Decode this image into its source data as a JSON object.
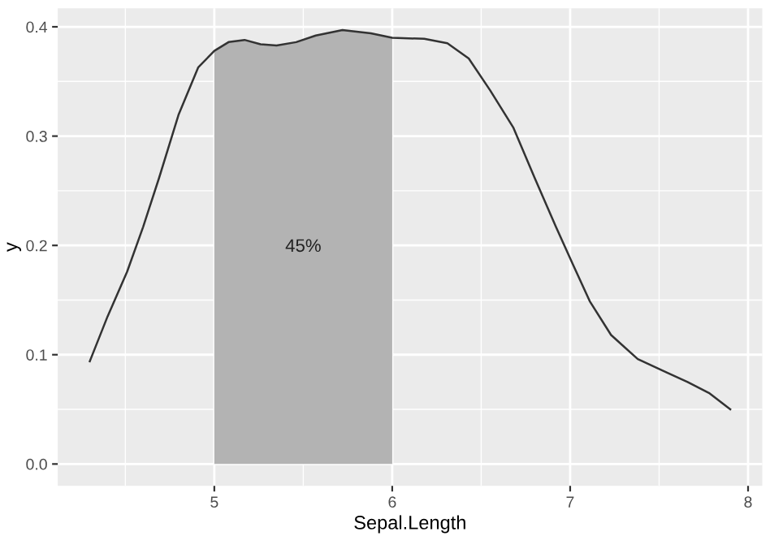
{
  "chart_data": {
    "type": "line",
    "xlabel": "Sepal.Length",
    "ylabel": "y",
    "xlim": [
      4.12,
      8.08
    ],
    "ylim": [
      -0.02,
      0.417
    ],
    "xticks": [
      5,
      6,
      7,
      8
    ],
    "yticks": [
      {
        "value": 0,
        "label": "0.0"
      },
      {
        "value": 0.1,
        "label": "0.1"
      },
      {
        "value": 0.2,
        "label": "0.2"
      },
      {
        "value": 0.3,
        "label": "0.3"
      },
      {
        "value": 0.4,
        "label": "0.4"
      }
    ],
    "grid": true,
    "series": [
      {
        "type": "area",
        "color": "#b3b3b3",
        "x": [
          5.0,
          5.08,
          5.17,
          5.26,
          5.35,
          5.46,
          5.57,
          5.72,
          5.88,
          6.0
        ],
        "values": [
          0.378,
          0.386,
          0.388,
          0.384,
          0.383,
          0.386,
          0.392,
          0.397,
          0.394,
          0.39
        ]
      },
      {
        "color": "#333333",
        "x": [
          4.3,
          4.4,
          4.51,
          4.6,
          4.69,
          4.8,
          4.91,
          5.0,
          5.08,
          5.17,
          5.26,
          5.35,
          5.46,
          5.57,
          5.72,
          5.88,
          6.0,
          6.18,
          6.31,
          6.43,
          6.55,
          6.68,
          6.8,
          6.92,
          7.02,
          7.11,
          7.23,
          7.38,
          7.54,
          7.66,
          7.78,
          7.9
        ],
        "values": [
          0.094,
          0.135,
          0.176,
          0.217,
          0.262,
          0.32,
          0.363,
          0.378,
          0.386,
          0.388,
          0.384,
          0.383,
          0.386,
          0.392,
          0.397,
          0.394,
          0.39,
          0.389,
          0.385,
          0.371,
          0.342,
          0.308,
          0.262,
          0.217,
          0.181,
          0.149,
          0.118,
          0.096,
          0.084,
          0.075,
          0.065,
          0.05
        ]
      }
    ],
    "annotations": [
      "45%"
    ]
  }
}
